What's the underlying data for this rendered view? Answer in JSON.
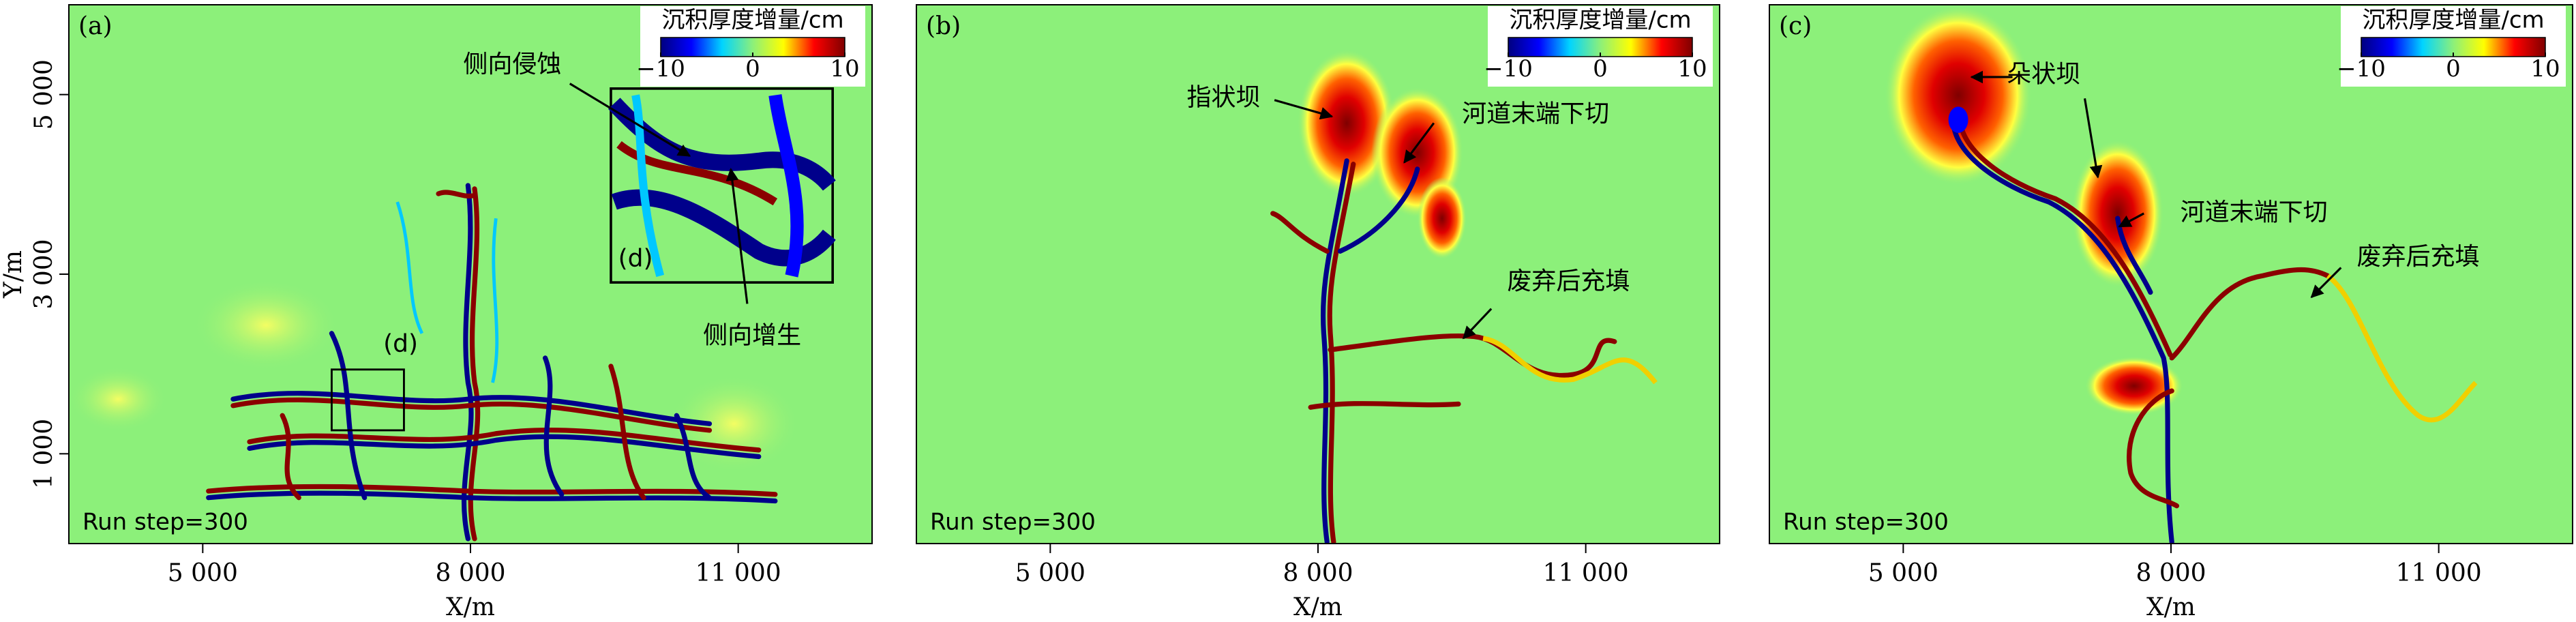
{
  "chart_data": [
    {
      "type": "heatmap",
      "panel_label": "(a)",
      "xlabel": "X/m",
      "ylabel": "Y/m",
      "xlim": [
        3500,
        12500
      ],
      "xticks": [
        {
          "value": 5000,
          "label": "5 000"
        },
        {
          "value": 8000,
          "label": "8 000"
        },
        {
          "value": 11000,
          "label": "11 000"
        }
      ],
      "ylim": [
        0,
        6000
      ],
      "yticks": [
        {
          "value": 1000,
          "label": "1 000"
        },
        {
          "value": 3000,
          "label": "3 000"
        },
        {
          "value": 5000,
          "label": "5 000"
        }
      ],
      "colorbar": {
        "title": "沉积厚度增量/cm",
        "lim": [
          -10,
          10
        ],
        "ticks": [
          {
            "value": -10,
            "label": "−10"
          },
          0,
          10
        ],
        "colors": [
          "#00007f",
          "#0000ff",
          "#00d4ff",
          "#8cf07a",
          "#ffff00",
          "#ff0000",
          "#7f0000"
        ]
      },
      "annotations": [
        "侧向侵蚀",
        "侧向增生",
        "(d)",
        "(d)"
      ],
      "run_label": "Run step=300"
    },
    {
      "type": "heatmap",
      "panel_label": "(b)",
      "xlabel": "X/m",
      "xlim": [
        3500,
        12500
      ],
      "xticks": [
        {
          "value": 5000,
          "label": "5 000"
        },
        {
          "value": 8000,
          "label": "8 000"
        },
        {
          "value": 11000,
          "label": "11 000"
        }
      ],
      "ylim": [
        0,
        6000
      ],
      "colorbar": {
        "title": "沉积厚度增量/cm",
        "lim": [
          -10,
          10
        ],
        "ticks": [
          {
            "value": -10,
            "label": "−10"
          },
          0,
          10
        ],
        "colors": [
          "#00007f",
          "#0000ff",
          "#00d4ff",
          "#8cf07a",
          "#ffff00",
          "#ff0000",
          "#7f0000"
        ]
      },
      "annotations": [
        "指状坝",
        "河道末端下切",
        "废弃后充填"
      ],
      "run_label": "Run step=300"
    },
    {
      "type": "heatmap",
      "panel_label": "(c)",
      "xlabel": "X/m",
      "xlim": [
        3500,
        12500
      ],
      "xticks": [
        {
          "value": 5000,
          "label": "5 000"
        },
        {
          "value": 8000,
          "label": "8 000"
        },
        {
          "value": 11000,
          "label": "11 000"
        }
      ],
      "ylim": [
        0,
        6000
      ],
      "colorbar": {
        "title": "沉积厚度增量/cm",
        "lim": [
          -10,
          10
        ],
        "ticks": [
          {
            "value": -10,
            "label": "−10"
          },
          0,
          10
        ],
        "colors": [
          "#00007f",
          "#0000ff",
          "#00d4ff",
          "#8cf07a",
          "#ffff00",
          "#ff0000",
          "#7f0000"
        ]
      },
      "annotations": [
        "朵状坝",
        "河道末端下切",
        "废弃后充填"
      ],
      "run_label": "Run step=300"
    }
  ]
}
